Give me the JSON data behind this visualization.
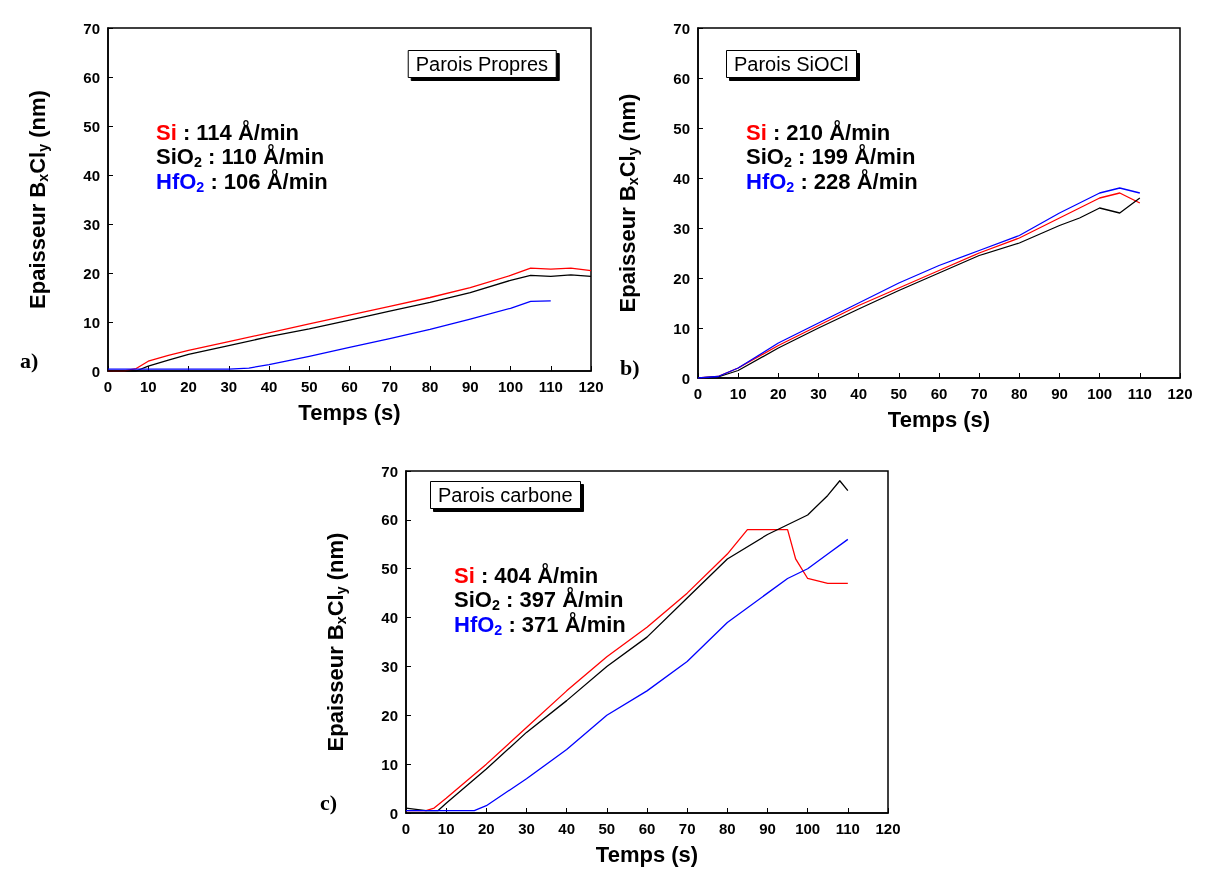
{
  "chart_data": [
    {
      "type": "line",
      "title": "Parois Propres",
      "xlabel": "Temps (s)",
      "ylabel": "Epaisseur B$_{x}$Cl$_{y}$ (nm)",
      "xlim": [
        0,
        120
      ],
      "ylim": [
        0,
        70
      ],
      "xticks": [
        0,
        10,
        20,
        30,
        40,
        50,
        60,
        70,
        80,
        90,
        100,
        110,
        120
      ],
      "yticks": [
        0,
        10,
        20,
        30,
        40,
        50,
        60,
        70
      ],
      "legend": "top left",
      "grid": false,
      "annotations": [
        ": 114 Å/min",
        ": 110 Å/min",
        ": 106 Å/min",
        "a)"
      ],
      "series": [
        {
          "name": "Si",
          "color": "#ff0000",
          "x": [
            0,
            4,
            7,
            10,
            15,
            20,
            30,
            40,
            50,
            60,
            70,
            80,
            90,
            100,
            105,
            110,
            115,
            120
          ],
          "values": [
            0,
            0,
            0.5,
            2,
            3.2,
            4.2,
            6,
            7.8,
            9.6,
            11.4,
            13.2,
            15,
            17,
            19.5,
            21,
            20.8,
            21,
            20.5
          ]
        },
        {
          "name": "SiO$_{2}$",
          "color": "#000000",
          "x": [
            0,
            5,
            7,
            10,
            15,
            20,
            30,
            40,
            50,
            60,
            70,
            80,
            90,
            100,
            105,
            110,
            115,
            120
          ],
          "values": [
            0,
            0,
            0,
            1,
            2.2,
            3.4,
            5.2,
            7,
            8.6,
            10.4,
            12.2,
            14,
            16,
            18.5,
            19.5,
            19.3,
            19.6,
            19.3
          ]
        },
        {
          "name": "HfO$_{2}$",
          "color": "#0000ff",
          "x": [
            0,
            10,
            20,
            30,
            35,
            40,
            50,
            60,
            70,
            80,
            90,
            100,
            105,
            110
          ],
          "values": [
            0.4,
            0.4,
            0.4,
            0.4,
            0.6,
            1.3,
            3,
            4.8,
            6.6,
            8.5,
            10.6,
            12.8,
            14.2,
            14.3
          ]
        }
      ]
    },
    {
      "type": "line",
      "title": "Parois SiOCl",
      "xlabel": "Temps (s)",
      "ylabel": "Epaisseur B$_{x}$Cl$_{y}$ (nm)",
      "xlim": [
        0,
        120
      ],
      "ylim": [
        0,
        70
      ],
      "xticks": [
        0,
        10,
        20,
        30,
        40,
        50,
        60,
        70,
        80,
        90,
        100,
        110,
        120
      ],
      "yticks": [
        0,
        10,
        20,
        30,
        40,
        50,
        60,
        70
      ],
      "legend": "top left",
      "grid": false,
      "annotations": [
        ": 210 Å/min",
        ": 199 Å/min",
        ": 228 Å/min",
        "b)"
      ],
      "series": [
        {
          "name": "Si",
          "color": "#ff0000",
          "x": [
            0,
            5,
            10,
            20,
            30,
            40,
            50,
            60,
            70,
            80,
            90,
            95,
            100,
            105,
            110
          ],
          "values": [
            0,
            0.3,
            2,
            6.5,
            10.5,
            14.5,
            18,
            21.5,
            25,
            28,
            32,
            34,
            36,
            37,
            35
          ]
        },
        {
          "name": "SiO$_{2}$",
          "color": "#000000",
          "x": [
            0,
            5,
            10,
            20,
            30,
            40,
            50,
            60,
            70,
            80,
            90,
            95,
            100,
            105,
            110
          ],
          "values": [
            0,
            0.2,
            1.5,
            6,
            10,
            13.8,
            17.5,
            21,
            24.5,
            27,
            30.5,
            32,
            34,
            33,
            36
          ]
        },
        {
          "name": "HfO$_{2}$",
          "color": "#0000ff",
          "x": [
            0,
            5,
            10,
            20,
            30,
            40,
            50,
            60,
            70,
            80,
            90,
            95,
            100,
            105,
            110
          ],
          "values": [
            0,
            0.3,
            2,
            7,
            11,
            15,
            19,
            22.5,
            25.5,
            28.5,
            33,
            35,
            37,
            38,
            37
          ]
        }
      ]
    },
    {
      "type": "line",
      "title": "Parois carbone",
      "xlabel": "Temps (s)",
      "ylabel": "Epaisseur B$_{x}$Cl$_{y}$ (nm)",
      "xlim": [
        0,
        120
      ],
      "ylim": [
        0,
        70
      ],
      "xticks": [
        0,
        10,
        20,
        30,
        40,
        50,
        60,
        70,
        80,
        90,
        100,
        110,
        120
      ],
      "yticks": [
        0,
        10,
        20,
        30,
        40,
        50,
        60,
        70
      ],
      "legend": "top left",
      "grid": false,
      "annotations": [
        ": 404 Å/min",
        ": 397 Å/min",
        ": 371 Å/min",
        "c)"
      ],
      "series": [
        {
          "name": "Si",
          "color": "#ff0000",
          "x": [
            0,
            5,
            7,
            10,
            20,
            30,
            40,
            50,
            60,
            70,
            80,
            85,
            90,
            95,
            97,
            100,
            105,
            110
          ],
          "values": [
            0.5,
            0.5,
            1,
            3,
            10,
            17.5,
            25,
            32,
            38,
            45,
            53,
            58,
            58,
            58,
            52,
            48,
            47,
            47
          ]
        },
        {
          "name": "SiO$_{2}$",
          "color": "#000000",
          "x": [
            0,
            5,
            8,
            10,
            20,
            30,
            40,
            50,
            60,
            70,
            80,
            90,
            95,
            100,
            105,
            108,
            110
          ],
          "values": [
            1,
            0.5,
            0.5,
            2,
            9,
            16.5,
            23,
            30,
            36,
            44,
            52,
            57,
            59,
            61,
            65,
            68,
            66
          ]
        },
        {
          "name": "HfO$_{2}$",
          "color": "#0000ff",
          "x": [
            0,
            10,
            15,
            17,
            20,
            30,
            40,
            50,
            60,
            70,
            80,
            90,
            95,
            100,
            105,
            110
          ],
          "values": [
            0.5,
            0.5,
            0.5,
            0.5,
            1.5,
            7,
            13,
            20,
            25,
            31,
            39,
            45,
            48,
            50,
            53,
            56
          ]
        }
      ]
    }
  ]
}
